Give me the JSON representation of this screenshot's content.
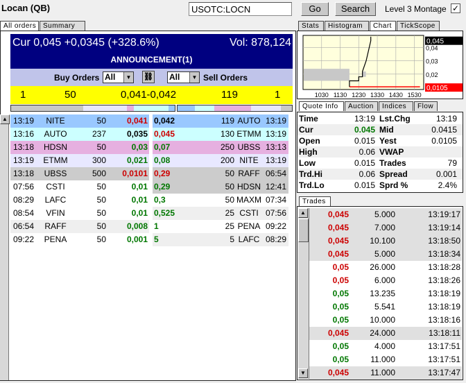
{
  "header": {
    "title": "Locan (QB)",
    "symbol_value": "USOTC:LOCN",
    "go_label": "Go",
    "search_label": "Search",
    "montage_label": "Level 3 Montage",
    "montage_checked": true,
    "check_glyph": "✓"
  },
  "left_tabs": [
    "All orders",
    "Summary"
  ],
  "summary": {
    "cur": "Cur 0,045 +0,0345 (+328.6%)",
    "vol": "Vol: 878,124",
    "announcement": "ANNOUNCEMENT(1)"
  },
  "filters": {
    "buy_label": "Buy Orders",
    "buy_select": "All",
    "sell_select": "All",
    "sell_label": "Sell Orders",
    "link_icon": "⛓"
  },
  "best": {
    "bid_count": "1",
    "bid_size": "50",
    "spread": "0,041-0,042",
    "ask_size": "119",
    "ask_count": "1"
  },
  "colors": {
    "level1": "#99c8ff",
    "level2": "#ccffff",
    "level3": "#e6b0e0",
    "level4": "#e8e8ff",
    "level5": "#cccccc",
    "alt": "#efefef",
    "white": "#ffffff",
    "red": "#cc0000",
    "green": "#007700",
    "header": "#000080"
  },
  "bids": [
    {
      "time": "13:19",
      "mm": "NITE",
      "size": "50",
      "price": "0,041",
      "color": "red",
      "bg": "level1"
    },
    {
      "time": "13:16",
      "mm": "AUTO",
      "size": "237",
      "price": "0,035",
      "color": "black",
      "bg": "level2"
    },
    {
      "time": "13:18",
      "mm": "HDSN",
      "size": "50",
      "price": "0,03",
      "color": "green",
      "bg": "level3"
    },
    {
      "time": "13:19",
      "mm": "ETMM",
      "size": "300",
      "price": "0,021",
      "color": "green",
      "bg": "level4"
    },
    {
      "time": "13:18",
      "mm": "UBSS",
      "size": "500",
      "price": "0,0101",
      "color": "red",
      "bg": "level5"
    },
    {
      "time": "07:56",
      "mm": "CSTI",
      "size": "50",
      "price": "0,01",
      "color": "green",
      "bg": "white"
    },
    {
      "time": "08:29",
      "mm": "LAFC",
      "size": "50",
      "price": "0,01",
      "color": "green",
      "bg": "white"
    },
    {
      "time": "08:54",
      "mm": "VFIN",
      "size": "50",
      "price": "0,01",
      "color": "green",
      "bg": "white"
    },
    {
      "time": "06:54",
      "mm": "RAFF",
      "size": "50",
      "price": "0,008",
      "color": "green",
      "bg": "alt"
    },
    {
      "time": "09:22",
      "mm": "PENA",
      "size": "50",
      "price": "0,001",
      "color": "green",
      "bg": "white"
    }
  ],
  "asks": [
    {
      "price": "0,042",
      "size": "119",
      "mm": "AUTO",
      "time": "13:19",
      "color": "black",
      "bg": "level1"
    },
    {
      "price": "0,045",
      "size": "130",
      "mm": "ETMM",
      "time": "13:19",
      "color": "red",
      "bg": "level2"
    },
    {
      "price": "0,07",
      "size": "250",
      "mm": "UBSS",
      "time": "13:13",
      "color": "green",
      "bg": "level3"
    },
    {
      "price": "0,08",
      "size": "200",
      "mm": "NITE",
      "time": "13:19",
      "color": "green",
      "bg": "level4"
    },
    {
      "price": "0,29",
      "size": "50",
      "mm": "RAFF",
      "time": "06:54",
      "color": "red",
      "bg": "level5"
    },
    {
      "price": "0,29",
      "size": "50",
      "mm": "HDSN",
      "time": "12:41",
      "color": "green",
      "bg": "level5"
    },
    {
      "price": "0,3",
      "size": "50",
      "mm": "MAXM",
      "time": "07:34",
      "color": "green",
      "bg": "white"
    },
    {
      "price": "0,525",
      "size": "25",
      "mm": "CSTI",
      "time": "07:56",
      "color": "green",
      "bg": "alt"
    },
    {
      "price": "1",
      "size": "25",
      "mm": "PENA",
      "time": "09:22",
      "color": "green",
      "bg": "white"
    },
    {
      "price": "5",
      "size": "5",
      "mm": "LAFC",
      "time": "08:29",
      "color": "green",
      "bg": "alt"
    }
  ],
  "right_tabs": [
    "Stats",
    "Histogram",
    "Chart",
    "TickScope"
  ],
  "chart": {
    "x_ticks": [
      "1030",
      "1130",
      "1230",
      "1330",
      "1430",
      "1530"
    ],
    "y_ticks": [
      "0,04",
      "0,03",
      "0,02"
    ],
    "last_label": "0,045",
    "yest_label": "0,0105",
    "price_line": [
      [
        12.0,
        0.0105
      ],
      [
        12.0,
        0.015
      ],
      [
        12.5,
        0.015
      ],
      [
        12.5,
        0.018
      ],
      [
        12.7,
        0.018
      ],
      [
        12.7,
        0.022
      ],
      [
        12.9,
        0.03
      ],
      [
        13.1,
        0.042
      ],
      [
        13.15,
        0.045
      ],
      [
        13.15,
        0.048
      ]
    ],
    "yest_value": 0.0105,
    "gray_range": {
      "from": 9.9,
      "to": 12.0,
      "low": 0.015,
      "high": 0.024
    }
  },
  "quote_tabs": [
    "Quote Info",
    "Auction",
    "Indices",
    "Flow"
  ],
  "quote": [
    {
      "l1": "Time",
      "v1": "13:19",
      "l2": "Lst.Chg",
      "v2": "13:19"
    },
    {
      "l1": "Cur",
      "v1": "0.045",
      "l2": "Mid",
      "v2": "0.0415"
    },
    {
      "l1": "Open",
      "v1": "0.015",
      "l2": "Yest",
      "v2": "0.0105"
    },
    {
      "l1": "High",
      "v1": "0.06",
      "l2": "VWAP",
      "v2": ""
    },
    {
      "l1": "Low",
      "v1": "0.015",
      "l2": "Trades",
      "v2": "79"
    },
    {
      "l1": "Trd.Hi",
      "v1": "0.06",
      "l2": "Spread",
      "v2": "0.001"
    },
    {
      "l1": "Trd.Lo",
      "v1": "0.015",
      "l2": "Sprd %",
      "v2": "2.4%"
    }
  ],
  "trades_tab": "Trades",
  "trades": [
    {
      "price": "0,045",
      "size": "5.000",
      "time": "13:19:17",
      "color": "red",
      "shaded": true
    },
    {
      "price": "0,045",
      "size": "7.000",
      "time": "13:19:14",
      "color": "red",
      "shaded": true
    },
    {
      "price": "0,045",
      "size": "10.100",
      "time": "13:18:50",
      "color": "red",
      "shaded": true
    },
    {
      "price": "0,045",
      "size": "5.000",
      "time": "13:18:34",
      "color": "red",
      "shaded": true
    },
    {
      "price": "0,05",
      "size": "26.000",
      "time": "13:18:28",
      "color": "red",
      "shaded": false
    },
    {
      "price": "0,05",
      "size": "6.000",
      "time": "13:18:26",
      "color": "red",
      "shaded": false
    },
    {
      "price": "0,05",
      "size": "13.235",
      "time": "13:18:19",
      "color": "green",
      "shaded": false
    },
    {
      "price": "0,05",
      "size": "5.541",
      "time": "13:18:19",
      "color": "green",
      "shaded": false
    },
    {
      "price": "0,05",
      "size": "10.000",
      "time": "13:18:16",
      "color": "green",
      "shaded": false
    },
    {
      "price": "0,045",
      "size": "24.000",
      "time": "13:18:11",
      "color": "red",
      "shaded": true
    },
    {
      "price": "0,05",
      "size": "4.000",
      "time": "13:17:51",
      "color": "green",
      "shaded": false
    },
    {
      "price": "0,05",
      "size": "11.000",
      "time": "13:17:51",
      "color": "green",
      "shaded": false
    },
    {
      "price": "0,045",
      "size": "11.000",
      "time": "13:17:47",
      "color": "red",
      "shaded": true
    }
  ]
}
